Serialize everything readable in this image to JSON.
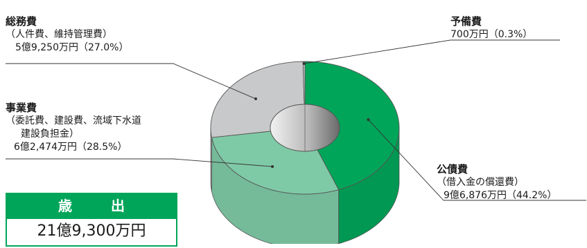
{
  "chart_data": {
    "type": "pie",
    "style": "3d-donut",
    "unit": "万円",
    "slices": [
      {
        "name": "公債費",
        "detail": [
          "（借入金の償還費）"
        ],
        "amount_label": "9億6,876万円（44.2%）",
        "value": 96876,
        "percent": 44.2,
        "color": "#00a559"
      },
      {
        "name": "事業費",
        "detail": [
          "（委託費、建設費、流域下水道",
          "建設負担金）"
        ],
        "amount_label": "6億2,474万円（28.5%）",
        "value": 62474,
        "percent": 28.5,
        "color": "#7fcaa6"
      },
      {
        "name": "総務費",
        "detail": [
          "（人件費、維持管理費）"
        ],
        "amount_label": "5億9,250万円（27.0%）",
        "value": 59250,
        "percent": 27.0,
        "color": "#c8c9ca"
      },
      {
        "name": "予備費",
        "detail": [],
        "amount_label": "700万円（0.3%）",
        "value": 700,
        "percent": 0.3,
        "color": "#c8c9ca"
      }
    ]
  },
  "summary": {
    "title": "歳　出",
    "total": "21億9,300万円",
    "accent_color": "#00a559"
  }
}
